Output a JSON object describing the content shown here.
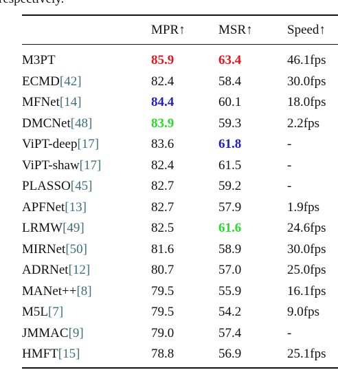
{
  "caption_tail": "respectively.",
  "table": {
    "header": [
      "",
      "MPR↑",
      "MSR↑",
      "Speed↑"
    ],
    "rows": [
      {
        "method": "M3PT",
        "cite": null,
        "mpr": "85.9",
        "msr": "63.4",
        "speed": "46.1fps",
        "mpr_color": "#e8141c",
        "msr_color": "#e8141c"
      },
      {
        "method": "ECMD",
        "cite": "[42]",
        "mpr": "82.4",
        "msr": "58.4",
        "speed": "30.0fps"
      },
      {
        "method": "MFNet",
        "cite": "[14]",
        "mpr": "84.4",
        "msr": "60.1",
        "speed": "18.0fps",
        "mpr_color": "#1f1fc8"
      },
      {
        "method": "DMCNet",
        "cite": "[48]",
        "mpr": "83.9",
        "msr": "59.3",
        "speed": "2.2fps",
        "mpr_color": "#27dc27"
      },
      {
        "method": "ViPT-deep",
        "cite": "[17]",
        "mpr": "83.6",
        "msr": "61.8",
        "speed": "-",
        "msr_color": "#1f1fc8"
      },
      {
        "method": "ViPT-shaw",
        "cite": "[17]",
        "mpr": "82.4",
        "msr": "61.5",
        "speed": "-"
      },
      {
        "method": "PLASSO",
        "cite": "[45]",
        "mpr": "82.7",
        "msr": "59.2",
        "speed": "-"
      },
      {
        "method": "APFNet",
        "cite": "[13]",
        "mpr": "82.7",
        "msr": "57.9",
        "speed": "1.9fps"
      },
      {
        "method": "LRMW",
        "cite": "[49]",
        "mpr": "82.5",
        "msr": "61.6",
        "speed": "24.6fps",
        "msr_color": "#27dc27"
      },
      {
        "method": "MIRNet",
        "cite": "[50]",
        "mpr": "81.6",
        "msr": "58.9",
        "speed": "30.0fps"
      },
      {
        "method": "ADRNet",
        "cite": "[12]",
        "mpr": "80.7",
        "msr": "57.0",
        "speed": "25.0fps"
      },
      {
        "method": "MANet++",
        "cite": "[8]",
        "mpr": "79.5",
        "msr": "55.9",
        "speed": "16.1fps"
      },
      {
        "method": "M5L",
        "cite": "[7]",
        "mpr": "79.5",
        "msr": "54.2",
        "speed": "9.0fps"
      },
      {
        "method": "JMMAC",
        "cite": "[9]",
        "mpr": "79.0",
        "msr": "57.4",
        "speed": "-"
      },
      {
        "method": "HMFT",
        "cite": "[15]",
        "mpr": "78.8",
        "msr": "56.9",
        "speed": "25.1fps"
      }
    ]
  }
}
